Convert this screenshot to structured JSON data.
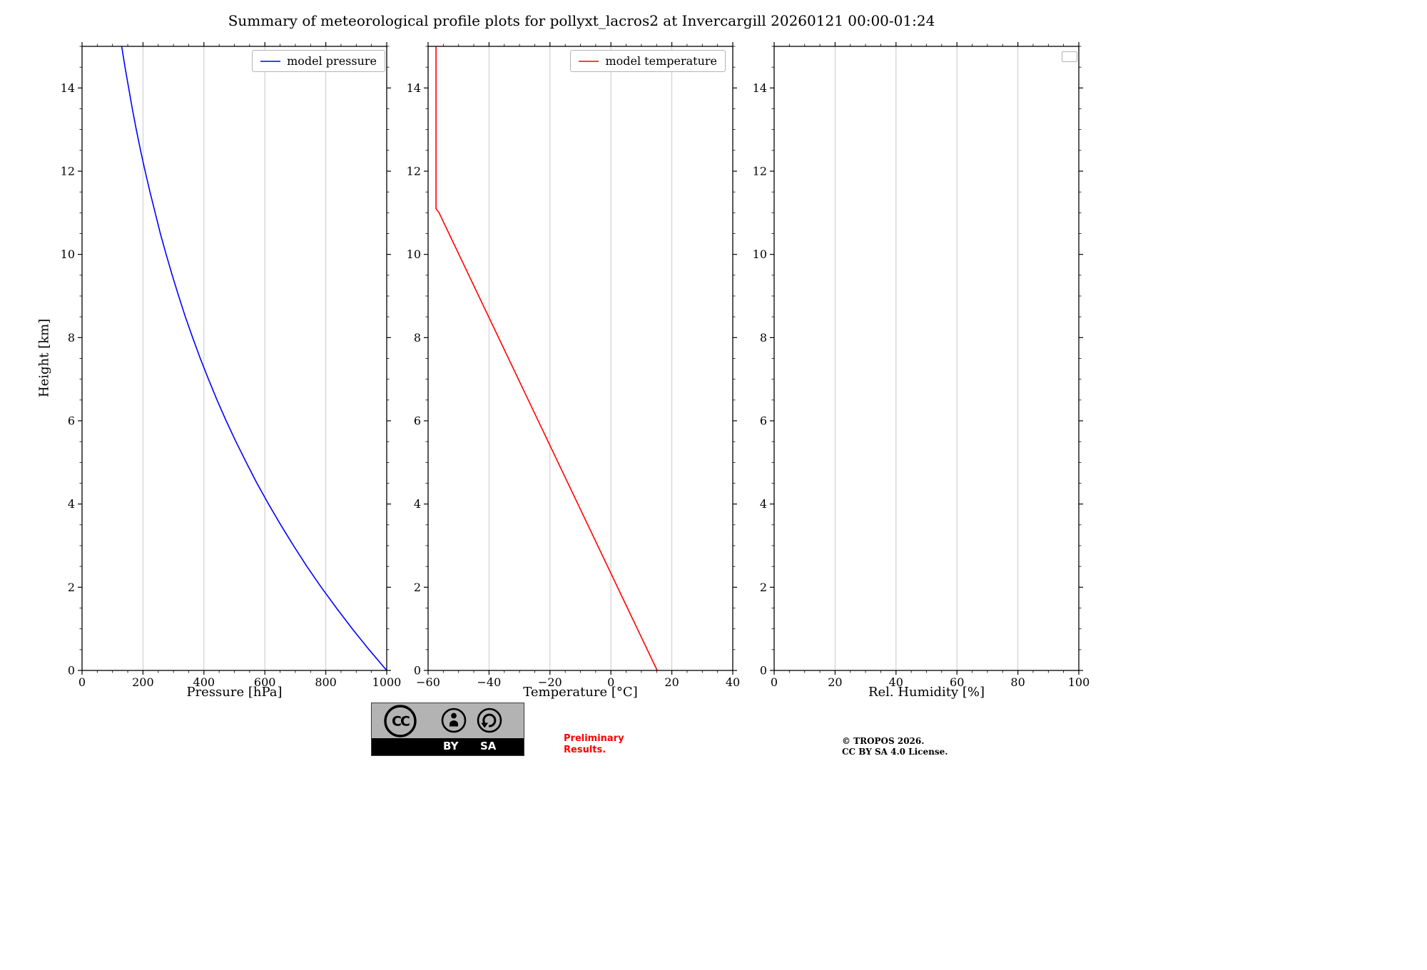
{
  "title": "Summary of meteorological profile plots for pollyxt_lacros2 at Invercargill 20260121 00:00-01:24",
  "style": {
    "background": "#ffffff",
    "grid_color": "#c8c8c8",
    "axis_color": "#000000",
    "pressure_color": "#0000ff",
    "temperature_color": "#ff0000"
  },
  "chart_data": [
    {
      "type": "line",
      "title": "",
      "xlabel": "Pressure [hPa]",
      "ylabel": "Height [km]",
      "xlim": [
        0,
        1000
      ],
      "ylim": [
        0,
        15
      ],
      "xticks": [
        0,
        200,
        400,
        600,
        800,
        1000
      ],
      "yticks": [
        0,
        2,
        4,
        6,
        8,
        10,
        12,
        14
      ],
      "x_minor_step": 50,
      "y_minor_step": 0.5,
      "grid": "vertical",
      "legend": [
        {
          "label": "model pressure",
          "color": "#0000ff"
        }
      ],
      "series": [
        {
          "name": "model pressure",
          "color": "#0000ff",
          "points": [
            [
              1000,
              0
            ],
            [
              942,
              0.5
            ],
            [
              887,
              1
            ],
            [
              835,
              1.5
            ],
            [
              785,
              2
            ],
            [
              738,
              2.5
            ],
            [
              694,
              3
            ],
            [
              652,
              3.5
            ],
            [
              612,
              4
            ],
            [
              574,
              4.5
            ],
            [
              539,
              5
            ],
            [
              505,
              5.5
            ],
            [
              473,
              6
            ],
            [
              443,
              6.5
            ],
            [
              415,
              7
            ],
            [
              388,
              7.5
            ],
            [
              363,
              8
            ],
            [
              339,
              8.5
            ],
            [
              317,
              9
            ],
            [
              296,
              9.5
            ],
            [
              276,
              10
            ],
            [
              257,
              10.5
            ],
            [
              240,
              11
            ],
            [
              223,
              11.5
            ],
            [
              207,
              12
            ],
            [
              192,
              12.5
            ],
            [
              178,
              13
            ],
            [
              165,
              13.5
            ],
            [
              153,
              14
            ],
            [
              141,
              14.5
            ],
            [
              130,
              15
            ]
          ]
        }
      ]
    },
    {
      "type": "line",
      "title": "",
      "xlabel": "Temperature [°C]",
      "ylabel": "",
      "xlim": [
        -60,
        40
      ],
      "ylim": [
        0,
        15
      ],
      "xticks": [
        -60,
        -40,
        -20,
        0,
        20,
        40
      ],
      "yticks": [
        0,
        2,
        4,
        6,
        8,
        10,
        12,
        14
      ],
      "x_minor_step": 5,
      "y_minor_step": 0.5,
      "grid": "vertical",
      "legend": [
        {
          "label": "model temperature",
          "color": "#ff0000"
        }
      ],
      "series": [
        {
          "name": "model temperature",
          "color": "#ff0000",
          "points": [
            [
              15.2,
              0
            ],
            [
              -56.4,
              11
            ],
            [
              -57.4,
              11.1
            ],
            [
              -57.4,
              15
            ]
          ]
        }
      ]
    },
    {
      "type": "line",
      "title": "",
      "xlabel": "Rel. Humidity [%]",
      "ylabel": "",
      "xlim": [
        0,
        100
      ],
      "ylim": [
        0,
        15
      ],
      "xticks": [
        0,
        20,
        40,
        60,
        80,
        100
      ],
      "yticks": [
        0,
        2,
        4,
        6,
        8,
        10,
        12,
        14
      ],
      "x_minor_step": 5,
      "y_minor_step": 0.5,
      "grid": "vertical",
      "legend": [],
      "series": []
    }
  ],
  "footer": {
    "badge": {
      "cc": "CC",
      "by": "BY",
      "sa": "SA"
    },
    "preliminary": {
      "line1": "Preliminary",
      "line2": "Results."
    },
    "credit": {
      "line1": "© TROPOS 2026.",
      "line2": "CC BY SA 4.0 License."
    }
  }
}
